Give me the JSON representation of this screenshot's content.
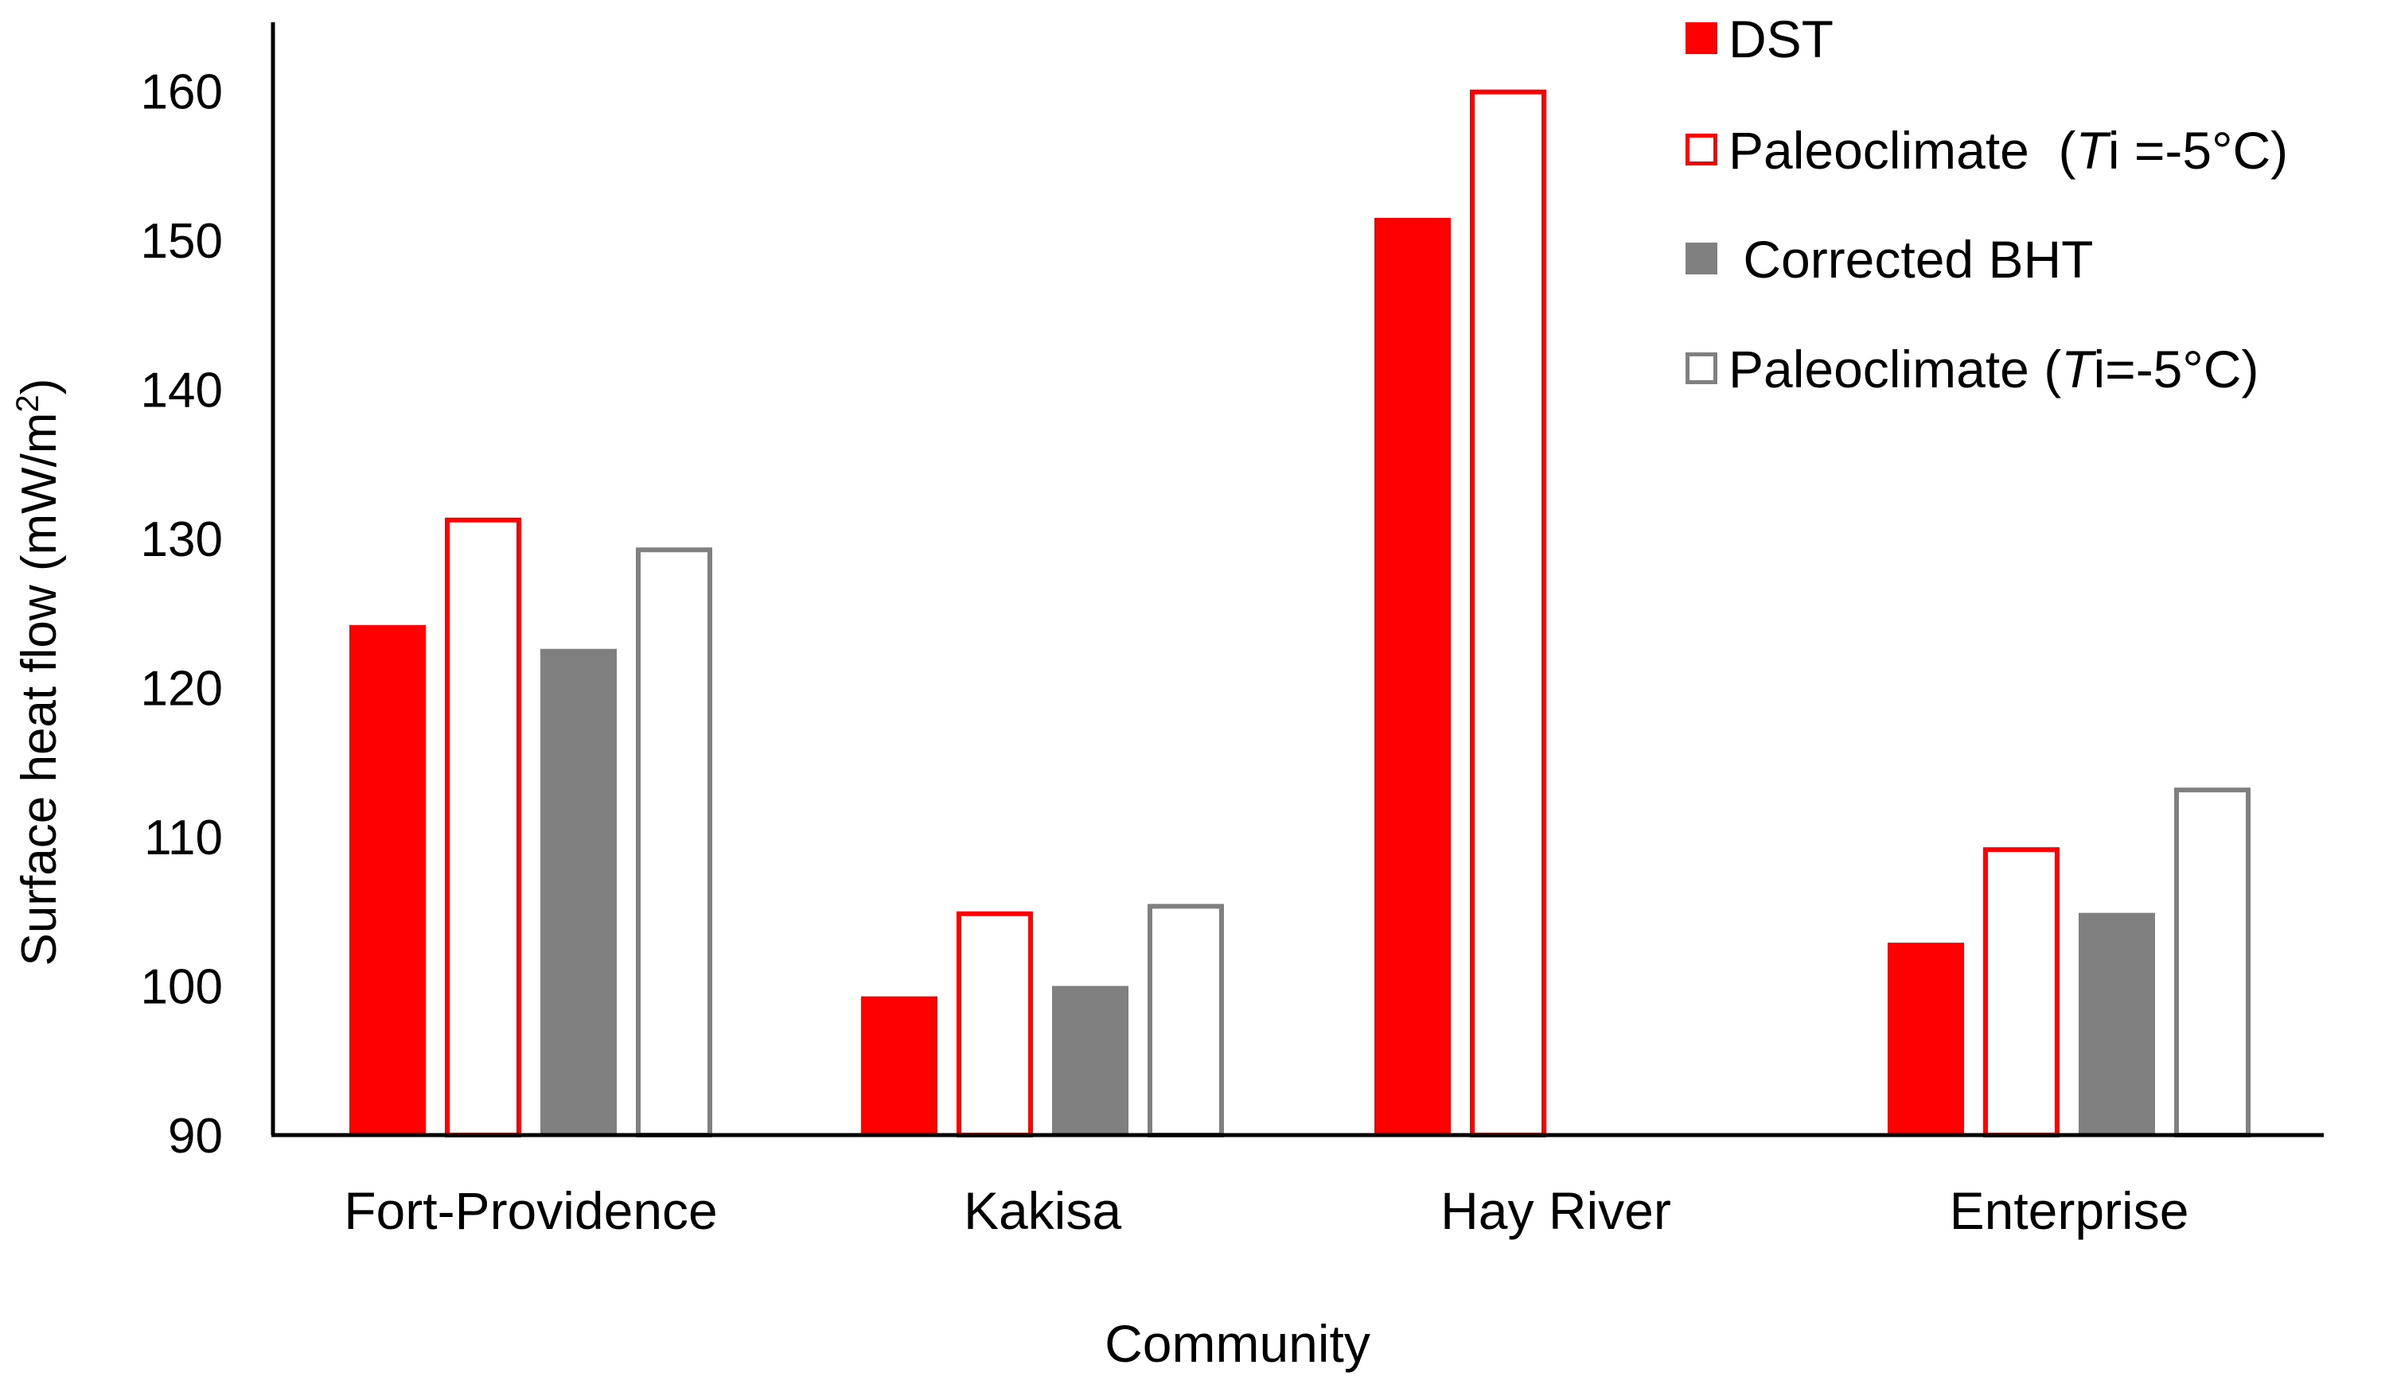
{
  "chart_data": {
    "type": "bar",
    "title": "",
    "xlabel": "Community",
    "ylabel": "Surface heat flow (mW/m",
    "ylabel_superscript": "2",
    "ylabel_suffix": ")",
    "ylim": [
      90,
      165
    ],
    "yticks": [
      90,
      100,
      110,
      120,
      130,
      140,
      150,
      160
    ],
    "grid": false,
    "legend_position": "top-right",
    "categories": [
      "Fort-Providence",
      "Kakisa",
      "Hay River",
      "Enterprise"
    ],
    "series": [
      {
        "name": "DST",
        "legend_text": "DST",
        "style": "filled",
        "color": "#ff0000",
        "values": [
          124.2,
          99.3,
          151.5,
          102.9
        ]
      },
      {
        "name": "Paleoclimate (Ti =-5°C)",
        "legend_text": "Paleoclimate  (",
        "legend_italic": "T",
        "legend_tail": "i =-5°C)",
        "style": "outline",
        "color": "#ff0000",
        "values": [
          131.4,
          105.0,
          160.1,
          109.3
        ]
      },
      {
        "name": "Corrected BHT",
        "legend_text": " Corrected BHT",
        "style": "filled",
        "color": "#808080",
        "values": [
          122.6,
          100.0,
          null,
          104.9
        ]
      },
      {
        "name": "Paleoclimate (Ti=-5°C)",
        "legend_text": "Paleoclimate (",
        "legend_italic": "T",
        "legend_tail": "i=-5°C)",
        "style": "outline",
        "color": "#808080",
        "values": [
          129.4,
          105.5,
          null,
          113.3
        ]
      }
    ]
  }
}
